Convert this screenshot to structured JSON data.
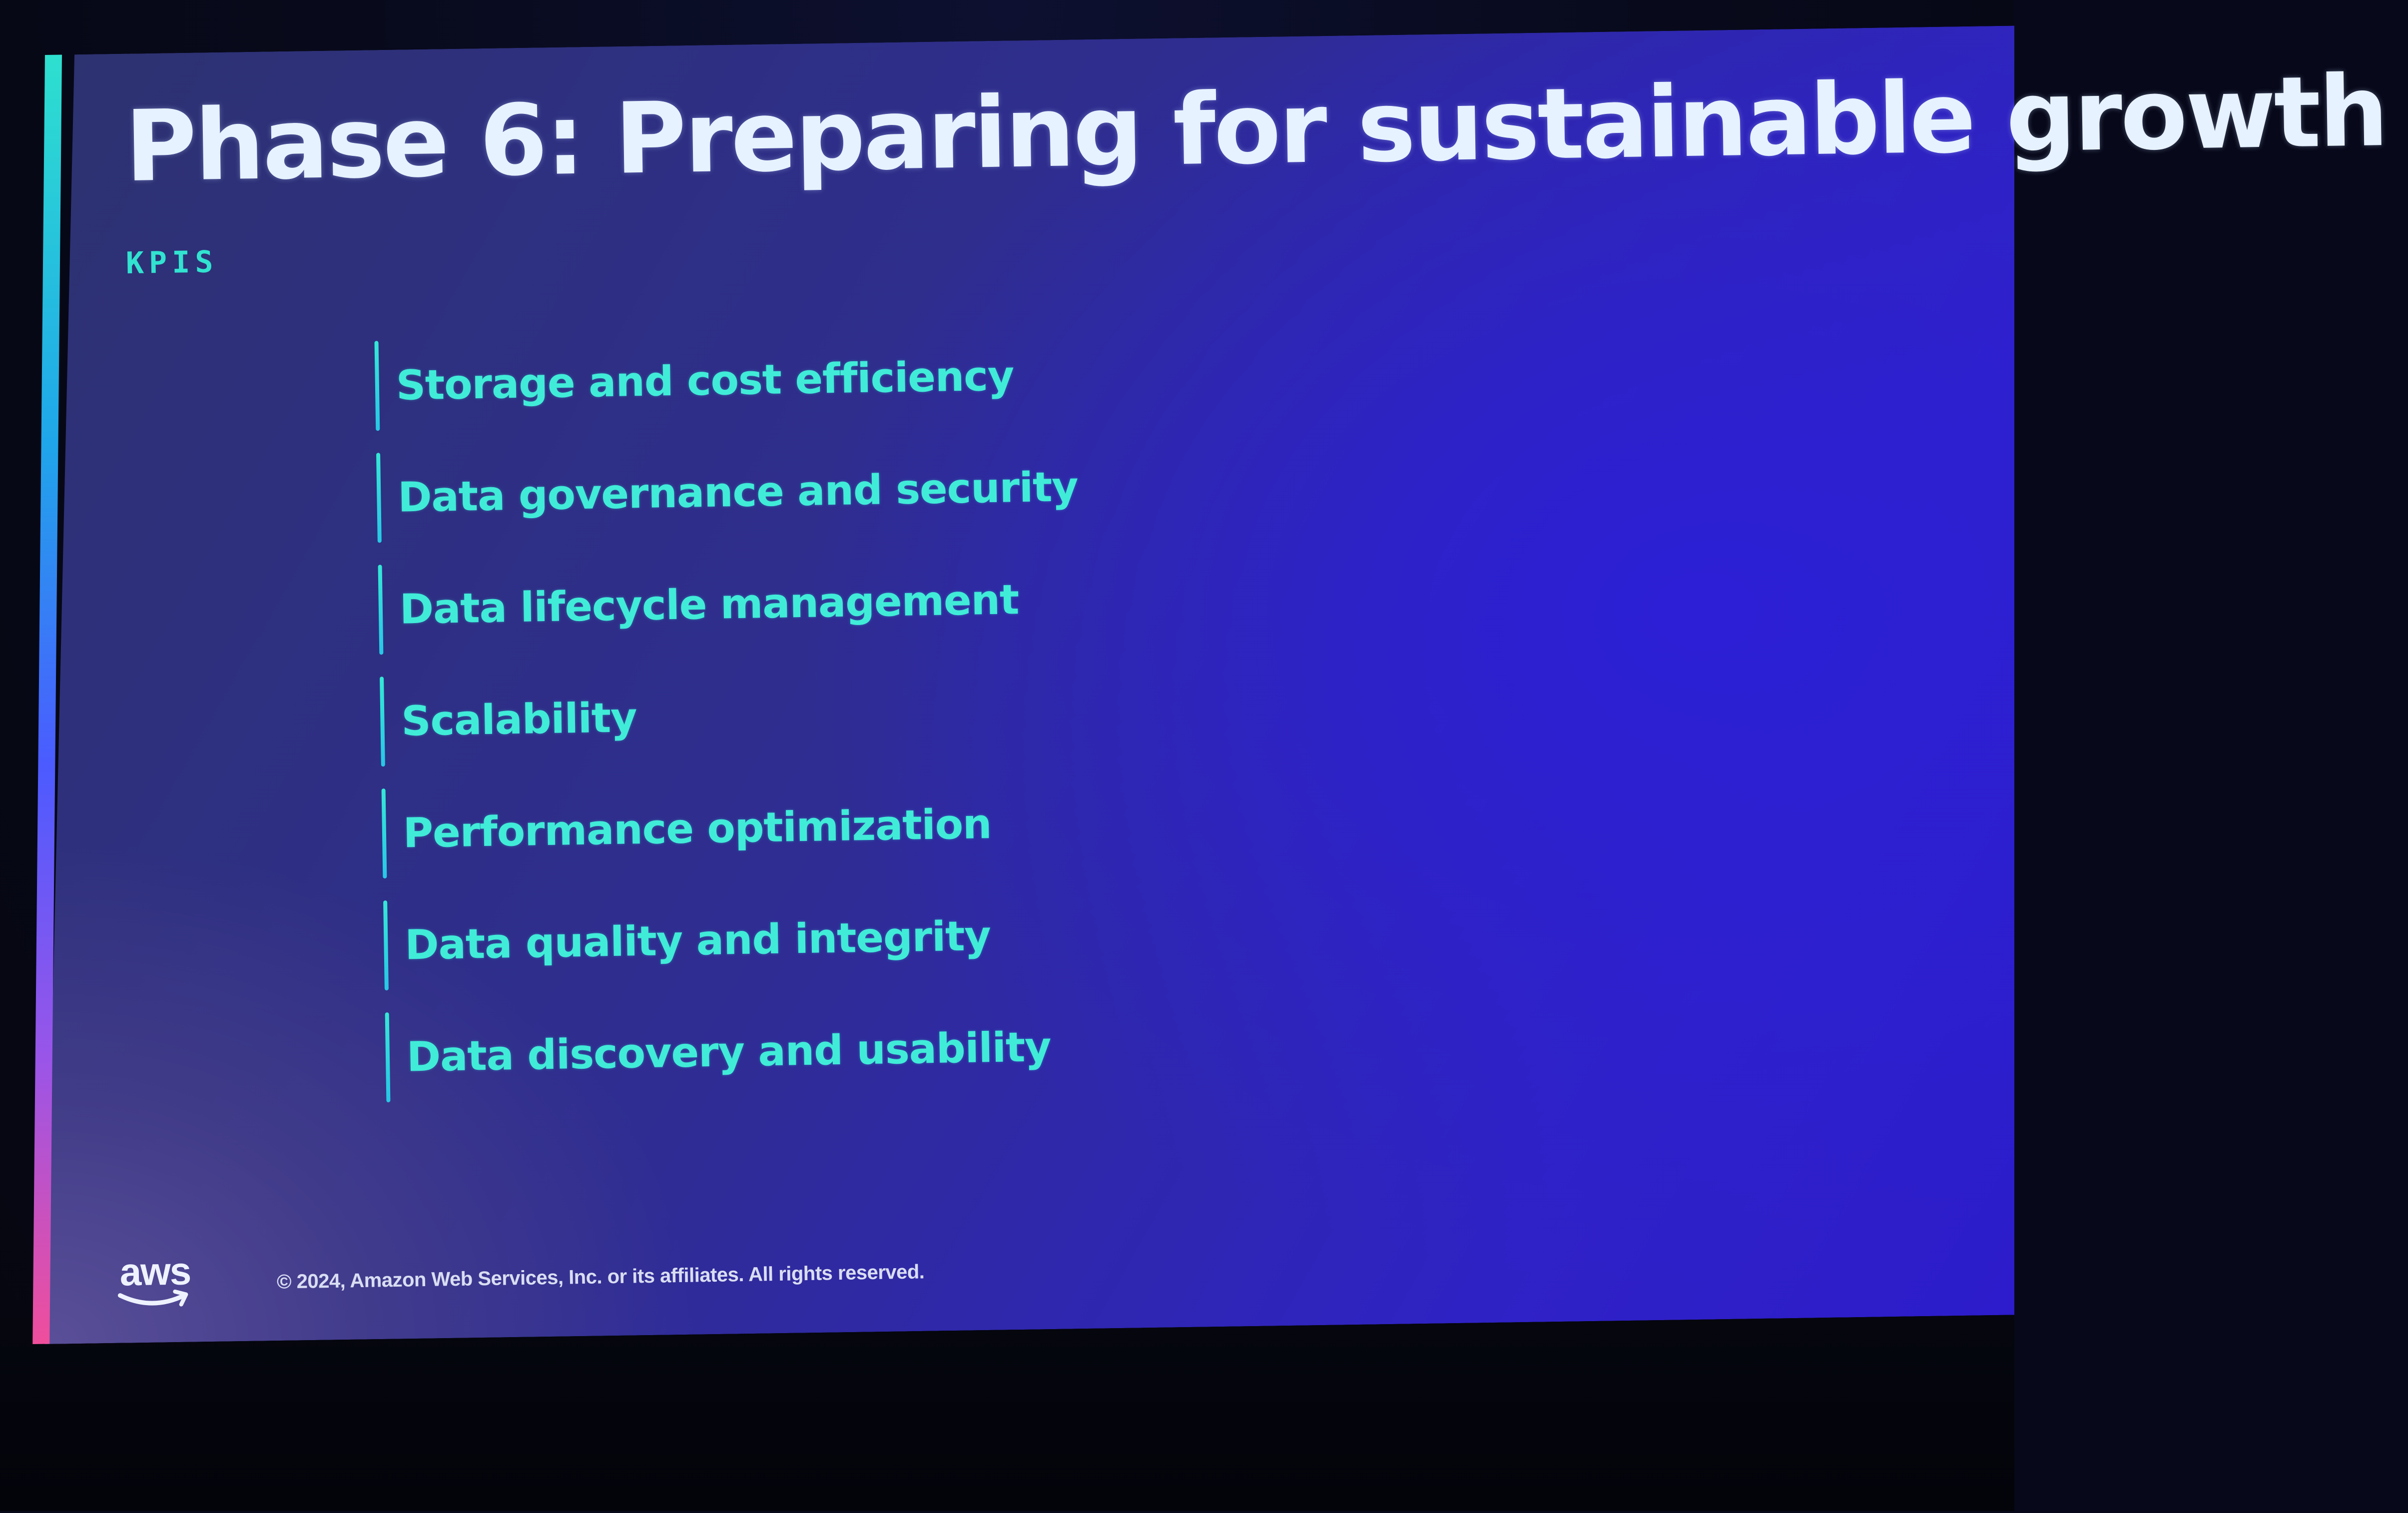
{
  "slide": {
    "title": "Phase 6: Preparing for sustainable growth",
    "section_label": "KPIS",
    "kpis": [
      "Storage and cost efficiency",
      "Data governance and security",
      "Data lifecycle management",
      "Scalability",
      "Performance optimization",
      "Data quality and integrity",
      "Data discovery and usability"
    ],
    "footer": {
      "logo_text": "aws",
      "copyright": "© 2024, Amazon Web Services, Inc. or its affiliates. All rights reserved."
    }
  },
  "colors": {
    "accent": "#40ecd8",
    "title": "#e6f2ff",
    "background": "#2f2d92"
  },
  "icons": [
    "aws-logo-icon"
  ]
}
